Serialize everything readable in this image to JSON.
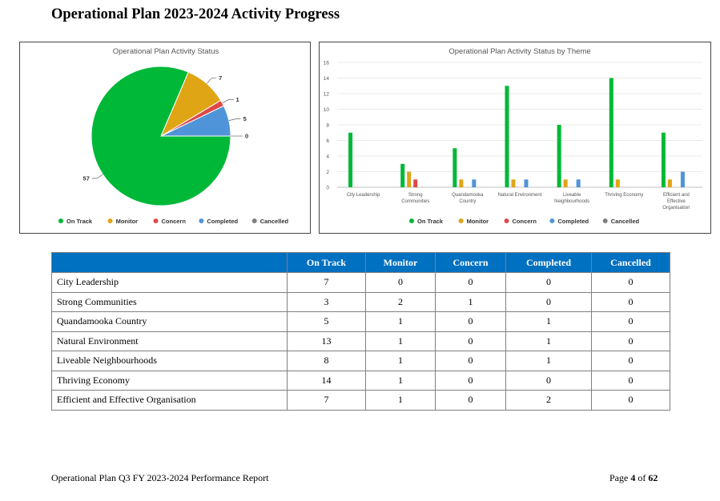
{
  "page": {
    "title": "Operational Plan 2023-2024 Activity Progress",
    "footer_left": "Operational Plan Q3 FY 2023-2024 Performance Report",
    "footer_page_prefix": "Page ",
    "footer_page_num": "4",
    "footer_page_mid": " of ",
    "footer_page_total": "62"
  },
  "colors": {
    "On Track": "#00b838",
    "Monitor": "#e0a515",
    "Concern": "#e04848",
    "Completed": "#4f94d8",
    "Cancelled": "#7f7f7f"
  },
  "table": {
    "headers": [
      "",
      "On Track",
      "Monitor",
      "Concern",
      "Completed",
      "Cancelled"
    ],
    "rows": [
      {
        "name": "City Leadership",
        "values": [
          "7",
          "0",
          "0",
          "0",
          "0"
        ]
      },
      {
        "name": "Strong Communities",
        "values": [
          "3",
          "2",
          "1",
          "0",
          "0"
        ]
      },
      {
        "name": "Quandamooka Country",
        "values": [
          "5",
          "1",
          "0",
          "1",
          "0"
        ]
      },
      {
        "name": "Natural Environment",
        "values": [
          "13",
          "1",
          "0",
          "1",
          "0"
        ]
      },
      {
        "name": "Liveable Neighbourhoods",
        "values": [
          "8",
          "1",
          "0",
          "1",
          "0"
        ]
      },
      {
        "name": "Thriving Economy",
        "values": [
          "14",
          "1",
          "0",
          "0",
          "0"
        ]
      },
      {
        "name": "Efficient and Effective Organisation",
        "values": [
          "7",
          "1",
          "0",
          "2",
          "0"
        ]
      }
    ]
  },
  "chart_data": [
    {
      "type": "pie",
      "title": "Operational Plan Activity Status",
      "labels": [
        "On Track",
        "Monitor",
        "Concern",
        "Completed",
        "Cancelled"
      ],
      "values": [
        57,
        7,
        1,
        5,
        0
      ],
      "legend": "bottom"
    },
    {
      "type": "bar",
      "title": "Operational Plan Activity Status by Theme",
      "categories": [
        [
          "City Leadership"
        ],
        [
          "Strong",
          "Communities"
        ],
        [
          "Quandamooka",
          "Country"
        ],
        [
          "Natural Environment"
        ],
        [
          "Liveable",
          "Neighbourhoods"
        ],
        [
          "Thriving Economy"
        ],
        [
          "Efficient and",
          "Effective",
          "Organisation"
        ]
      ],
      "series": [
        {
          "name": "On Track",
          "values": [
            7,
            3,
            5,
            13,
            8,
            14,
            7
          ]
        },
        {
          "name": "Monitor",
          "values": [
            0,
            2,
            1,
            1,
            1,
            1,
            1
          ]
        },
        {
          "name": "Concern",
          "values": [
            0,
            1,
            0,
            0,
            0,
            0,
            0
          ]
        },
        {
          "name": "Completed",
          "values": [
            0,
            0,
            1,
            1,
            1,
            0,
            2
          ]
        },
        {
          "name": "Cancelled",
          "values": [
            0,
            0,
            0,
            0,
            0,
            0,
            0
          ]
        }
      ],
      "yticks": [
        0,
        2,
        4,
        6,
        8,
        10,
        12,
        14,
        16
      ],
      "ylim": [
        0,
        16
      ],
      "grid": true,
      "legend": "bottom"
    }
  ]
}
